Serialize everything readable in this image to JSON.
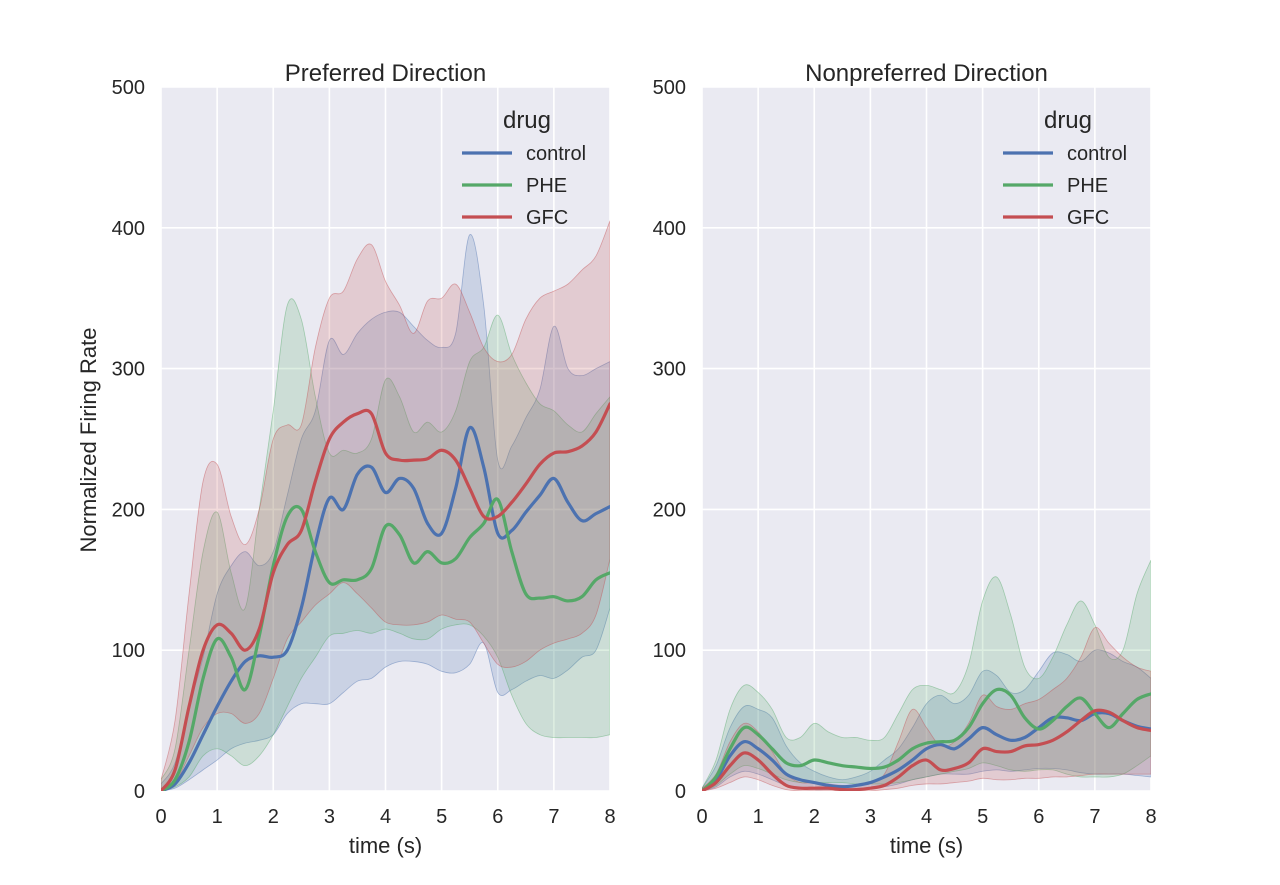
{
  "figure": {
    "ylabel": "Normalized Firing Rate"
  },
  "chart_data": [
    {
      "type": "line",
      "title": "Preferred Direction",
      "xlabel": "time (s)",
      "ylabel": "Normalized Firing Rate",
      "xlim": [
        0,
        8
      ],
      "ylim": [
        0,
        500
      ],
      "xticks": [
        0,
        1,
        2,
        3,
        4,
        5,
        6,
        7,
        8
      ],
      "yticks": [
        0,
        100,
        200,
        300,
        400,
        500
      ],
      "grid": true,
      "legend": {
        "title": "drug",
        "position": "top-right"
      },
      "x": [
        0,
        0.25,
        0.5,
        0.75,
        1,
        1.25,
        1.5,
        1.75,
        2,
        2.25,
        2.5,
        2.75,
        3,
        3.25,
        3.5,
        3.75,
        4,
        4.25,
        4.5,
        4.75,
        5,
        5.25,
        5.5,
        5.75,
        6,
        6.25,
        6.5,
        6.75,
        7,
        7.25,
        7.5,
        7.75,
        8
      ],
      "series": [
        {
          "name": "control",
          "color": "#4c72b0",
          "mean": [
            0,
            5,
            20,
            40,
            60,
            78,
            92,
            96,
            95,
            100,
            130,
            175,
            208,
            200,
            225,
            230,
            212,
            222,
            215,
            190,
            183,
            215,
            258,
            230,
            183,
            185,
            198,
            210,
            222,
            205,
            192,
            197,
            202
          ],
          "lower": [
            0,
            2,
            8,
            15,
            22,
            30,
            34,
            36,
            40,
            55,
            62,
            62,
            62,
            70,
            78,
            80,
            88,
            92,
            92,
            90,
            85,
            84,
            90,
            105,
            70,
            72,
            78,
            82,
            80,
            86,
            95,
            100,
            130
          ],
          "upper": [
            5,
            20,
            60,
            95,
            140,
            160,
            170,
            160,
            170,
            210,
            250,
            270,
            320,
            310,
            325,
            335,
            340,
            340,
            330,
            320,
            315,
            325,
            395,
            345,
            235,
            245,
            265,
            285,
            330,
            300,
            295,
            300,
            305
          ]
        },
        {
          "name": "PHE",
          "color": "#55a868",
          "mean": [
            0,
            8,
            35,
            80,
            108,
            95,
            72,
            110,
            160,
            195,
            200,
            170,
            148,
            150,
            150,
            158,
            188,
            182,
            162,
            170,
            162,
            165,
            180,
            190,
            207,
            170,
            140,
            137,
            138,
            135,
            138,
            150,
            155
          ],
          "lower": [
            0,
            3,
            10,
            25,
            30,
            25,
            18,
            25,
            40,
            60,
            80,
            95,
            110,
            112,
            114,
            112,
            115,
            112,
            108,
            108,
            115,
            118,
            118,
            110,
            95,
            68,
            48,
            40,
            38,
            38,
            38,
            38,
            40
          ],
          "upper": [
            8,
            30,
            100,
            170,
            198,
            155,
            130,
            200,
            270,
            345,
            335,
            280,
            240,
            242,
            240,
            250,
            292,
            280,
            255,
            262,
            255,
            270,
            305,
            315,
            338,
            310,
            290,
            275,
            270,
            260,
            255,
            268,
            280
          ]
        },
        {
          "name": "GFC",
          "color": "#c44e52",
          "mean": [
            0,
            15,
            60,
            100,
            118,
            112,
            100,
            115,
            155,
            175,
            185,
            220,
            250,
            262,
            268,
            268,
            240,
            235,
            235,
            236,
            242,
            235,
            215,
            195,
            195,
            205,
            218,
            232,
            240,
            241,
            245,
            255,
            275
          ],
          "lower": [
            0,
            6,
            25,
            45,
            55,
            55,
            48,
            55,
            80,
            108,
            120,
            132,
            140,
            148,
            140,
            130,
            120,
            118,
            118,
            120,
            125,
            122,
            120,
            105,
            90,
            88,
            92,
            100,
            105,
            108,
            112,
            125,
            165
          ],
          "upper": [
            8,
            50,
            140,
            220,
            232,
            195,
            175,
            200,
            250,
            260,
            260,
            315,
            350,
            355,
            378,
            388,
            362,
            345,
            325,
            348,
            350,
            360,
            340,
            315,
            305,
            310,
            335,
            350,
            355,
            360,
            370,
            380,
            405
          ]
        }
      ]
    },
    {
      "type": "line",
      "title": "Nonpreferred Direction",
      "xlabel": "time (s)",
      "xlim": [
        0,
        8
      ],
      "ylim": [
        0,
        500
      ],
      "xticks": [
        0,
        1,
        2,
        3,
        4,
        5,
        6,
        7,
        8
      ],
      "yticks": [
        0,
        100,
        200,
        300,
        400,
        500
      ],
      "grid": true,
      "legend": {
        "title": "drug",
        "position": "top-right"
      },
      "x": [
        0,
        0.25,
        0.5,
        0.75,
        1,
        1.25,
        1.5,
        1.75,
        2,
        2.25,
        2.5,
        2.75,
        3,
        3.25,
        3.5,
        3.75,
        4,
        4.25,
        4.5,
        4.75,
        5,
        5.25,
        5.5,
        5.75,
        6,
        6.25,
        6.5,
        6.75,
        7,
        7.25,
        7.5,
        7.75,
        8
      ],
      "series": [
        {
          "name": "control",
          "color": "#4c72b0",
          "mean": [
            0,
            8,
            25,
            35,
            30,
            22,
            12,
            8,
            6,
            4,
            3,
            4,
            6,
            10,
            15,
            22,
            30,
            33,
            30,
            37,
            45,
            40,
            36,
            38,
            45,
            52,
            52,
            50,
            55,
            55,
            50,
            46,
            44
          ],
          "lower": [
            0,
            3,
            10,
            14,
            12,
            8,
            4,
            2,
            1,
            1,
            1,
            1,
            2,
            3,
            5,
            8,
            10,
            12,
            12,
            12,
            14,
            15,
            14,
            15,
            16,
            16,
            15,
            13,
            12,
            12,
            12,
            11,
            10
          ],
          "upper": [
            2,
            18,
            45,
            60,
            58,
            52,
            32,
            20,
            14,
            10,
            8,
            10,
            14,
            22,
            30,
            45,
            62,
            68,
            62,
            68,
            85,
            82,
            70,
            72,
            85,
            98,
            97,
            92,
            100,
            98,
            92,
            88,
            80
          ]
        },
        {
          "name": "PHE",
          "color": "#55a868",
          "mean": [
            0,
            10,
            30,
            45,
            40,
            30,
            20,
            18,
            22,
            20,
            18,
            17,
            16,
            17,
            22,
            30,
            34,
            35,
            36,
            45,
            62,
            72,
            68,
            52,
            44,
            50,
            60,
            66,
            55,
            45,
            55,
            65,
            69
          ],
          "lower": [
            0,
            4,
            12,
            18,
            16,
            12,
            8,
            6,
            6,
            6,
            6,
            5,
            5,
            5,
            6,
            8,
            10,
            12,
            14,
            16,
            20,
            18,
            15,
            14,
            15,
            15,
            12,
            10,
            10,
            10,
            12,
            18,
            25
          ],
          "upper": [
            2,
            22,
            58,
            75,
            70,
            58,
            38,
            38,
            48,
            42,
            38,
            38,
            36,
            38,
            55,
            72,
            75,
            72,
            70,
            90,
            135,
            152,
            125,
            88,
            80,
            95,
            118,
            135,
            118,
            95,
            100,
            140,
            164
          ]
        },
        {
          "name": "GFC",
          "color": "#c44e52",
          "mean": [
            0,
            6,
            18,
            27,
            22,
            12,
            4,
            2,
            2,
            2,
            1,
            1,
            2,
            4,
            10,
            18,
            22,
            15,
            16,
            20,
            30,
            28,
            28,
            32,
            33,
            36,
            42,
            50,
            57,
            56,
            50,
            45,
            43
          ],
          "lower": [
            0,
            2,
            6,
            10,
            8,
            4,
            1,
            0,
            0,
            0,
            0,
            0,
            0,
            1,
            2,
            4,
            5,
            5,
            6,
            7,
            9,
            8,
            8,
            9,
            9,
            10,
            10,
            11,
            12,
            12,
            12,
            12,
            12
          ],
          "upper": [
            2,
            12,
            35,
            48,
            42,
            28,
            12,
            6,
            6,
            5,
            4,
            4,
            6,
            12,
            35,
            58,
            45,
            32,
            35,
            48,
            68,
            60,
            58,
            62,
            65,
            72,
            80,
            95,
            116,
            105,
            95,
            88,
            85
          ]
        }
      ]
    }
  ]
}
